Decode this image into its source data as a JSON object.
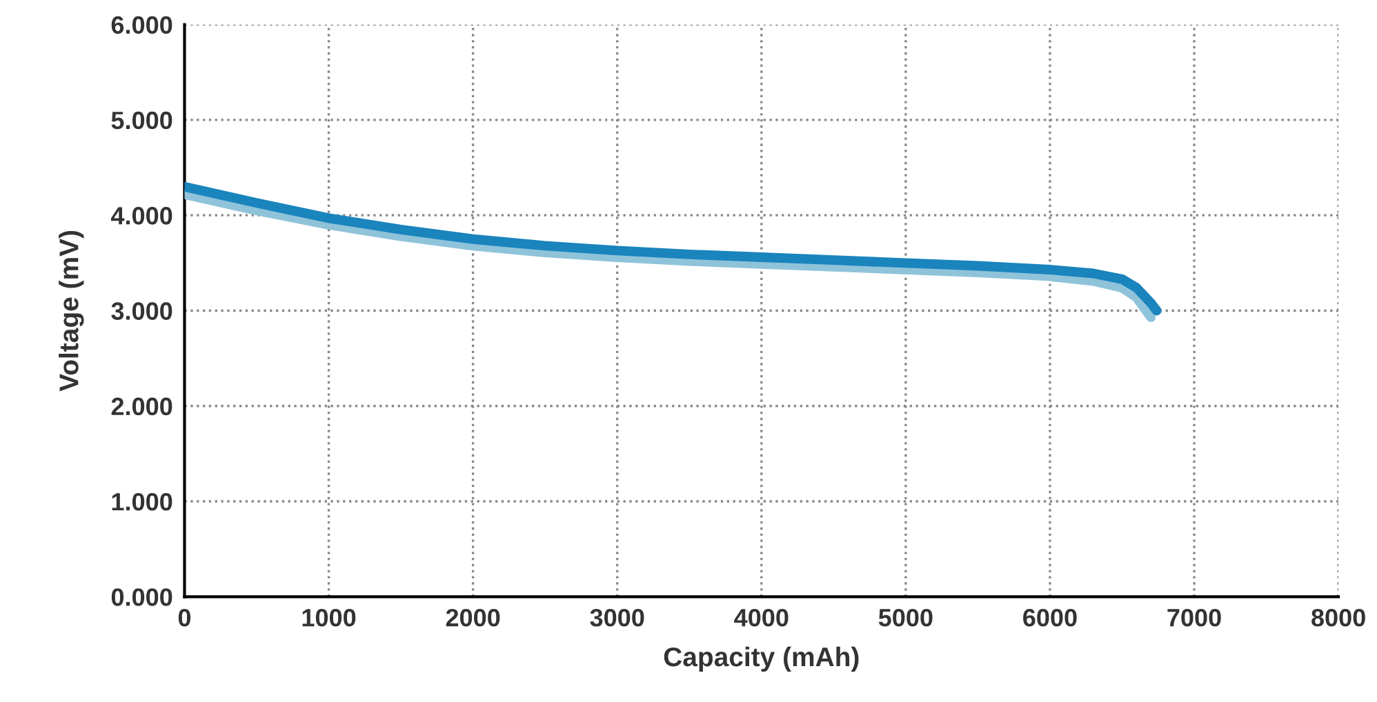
{
  "chart_data": {
    "type": "line",
    "xlabel": "Capacity (mAh)",
    "ylabel": "Voltage (mV)",
    "xlim": [
      0,
      8000
    ],
    "xticks": [
      0,
      1000,
      2000,
      3000,
      4000,
      5000,
      6000,
      7000,
      8000
    ],
    "ylim": [
      0,
      6
    ],
    "yticks": [
      {
        "value": 0,
        "label": "0.000"
      },
      {
        "value": 1,
        "label": "1.000"
      },
      {
        "value": 2,
        "label": "2.000"
      },
      {
        "value": 3,
        "label": "3.000"
      },
      {
        "value": 4,
        "label": "4.000"
      },
      {
        "value": 5,
        "label": "5.000"
      },
      {
        "value": 6,
        "label": "6.000"
      }
    ],
    "grid": true,
    "marker": "none",
    "line_style": "solid",
    "series": [
      {
        "color": "#8fc3da",
        "x": [
          0,
          500,
          1000,
          1500,
          2000,
          2500,
          3000,
          3500,
          4000,
          4500,
          5000,
          5500,
          6000,
          6300,
          6500,
          6600,
          6700
        ],
        "values": [
          4.22,
          4.05,
          3.9,
          3.78,
          3.68,
          3.61,
          3.56,
          3.52,
          3.49,
          3.46,
          3.43,
          3.4,
          3.36,
          3.31,
          3.24,
          3.14,
          2.93
        ]
      },
      {
        "color": "#1a84bd",
        "x": [
          0,
          500,
          1000,
          1500,
          2000,
          2500,
          3000,
          3500,
          4000,
          4500,
          5000,
          5500,
          6000,
          6300,
          6500,
          6600,
          6700,
          6740
        ],
        "values": [
          4.3,
          4.13,
          3.97,
          3.85,
          3.75,
          3.68,
          3.63,
          3.59,
          3.56,
          3.53,
          3.5,
          3.47,
          3.43,
          3.39,
          3.33,
          3.24,
          3.08,
          3.0
        ]
      }
    ]
  }
}
